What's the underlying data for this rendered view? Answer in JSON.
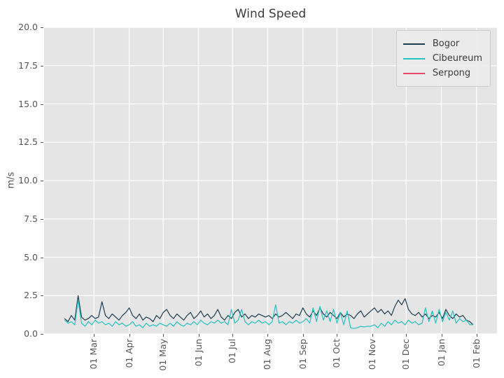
{
  "chart_data": {
    "type": "line",
    "title": "Wind Speed",
    "ylabel": "m/s",
    "xlabel": "",
    "ylim": [
      0,
      20
    ],
    "y_ticks": [
      0.0,
      2.5,
      5.0,
      7.5,
      10.0,
      12.5,
      15.0,
      17.5,
      20.0
    ],
    "y_tick_labels": [
      "0.0",
      "2.5",
      "5.0",
      "7.5",
      "10.0",
      "12.5",
      "15.0",
      "17.5",
      "20.0"
    ],
    "x_domain_days": [
      -18,
      381
    ],
    "x_ticks": [
      {
        "label": "01 Mar",
        "day": 26
      },
      {
        "label": "01 Apr",
        "day": 57
      },
      {
        "label": "01 May",
        "day": 87
      },
      {
        "label": "01 Jun",
        "day": 118
      },
      {
        "label": "01 Jul",
        "day": 148
      },
      {
        "label": "01 Aug",
        "day": 179
      },
      {
        "label": "01 Sep",
        "day": 210
      },
      {
        "label": "01 Oct",
        "day": 240
      },
      {
        "label": "01 Nov",
        "day": 271
      },
      {
        "label": "01 Dec",
        "day": 301
      },
      {
        "label": "01 Jan",
        "day": 332
      },
      {
        "label": "01 Feb",
        "day": 363
      }
    ],
    "grid": true,
    "legend_position": "upper right",
    "colors": {
      "axes_background": "#e5e5e5",
      "grid": "#ffffff",
      "ticks_text": "#555555",
      "title_text": "#3a3a3a"
    },
    "series": [
      {
        "name": "Bogor",
        "color": "#1d3d50",
        "x_start_day": 0,
        "x_step_days": 3,
        "values": [
          1.0,
          0.8,
          1.2,
          0.9,
          2.5,
          1.1,
          0.9,
          1.0,
          1.2,
          1.0,
          1.1,
          2.1,
          1.2,
          1.0,
          1.3,
          1.1,
          0.9,
          1.2,
          1.4,
          1.7,
          1.2,
          1.0,
          1.3,
          0.9,
          1.1,
          1.0,
          0.8,
          1.2,
          1.0,
          1.4,
          1.6,
          1.2,
          1.0,
          1.3,
          1.1,
          0.9,
          1.2,
          1.4,
          1.0,
          1.2,
          1.5,
          1.1,
          1.3,
          1.0,
          1.2,
          1.6,
          1.1,
          0.9,
          1.2,
          1.0,
          1.4,
          1.6,
          1.1,
          1.3,
          1.0,
          1.2,
          1.1,
          1.3,
          1.2,
          1.1,
          1.2,
          1.0,
          1.3,
          1.1,
          1.2,
          1.4,
          1.2,
          1.0,
          1.3,
          1.2,
          1.7,
          1.3,
          1.1,
          1.5,
          1.2,
          1.7,
          1.3,
          1.1,
          1.4,
          1.2,
          1.0,
          1.4,
          1.1,
          1.3,
          1.2,
          1.0,
          1.3,
          1.5,
          1.1,
          1.3,
          1.5,
          1.7,
          1.4,
          1.6,
          1.3,
          1.5,
          1.2,
          1.8,
          2.2,
          1.9,
          2.3,
          1.6,
          1.3,
          1.2,
          1.4,
          1.1,
          1.3,
          1.0,
          1.2,
          1.1,
          1.4,
          1.0,
          1.6,
          1.2,
          1.0,
          1.3,
          1.1,
          1.2,
          0.9,
          0.8,
          0.6
        ]
      },
      {
        "name": "Cibeureum",
        "color": "#25c3c3",
        "x_start_day": 0,
        "x_step_days": 3,
        "values": [
          0.9,
          0.7,
          0.8,
          0.6,
          2.2,
          0.7,
          0.5,
          0.8,
          0.6,
          0.9,
          0.7,
          0.8,
          0.6,
          0.7,
          0.5,
          0.8,
          0.6,
          0.7,
          0.5,
          0.6,
          0.8,
          0.5,
          0.6,
          0.4,
          0.7,
          0.5,
          0.6,
          0.5,
          0.7,
          0.6,
          0.5,
          0.7,
          0.5,
          0.8,
          0.6,
          0.5,
          0.7,
          0.6,
          0.8,
          0.6,
          0.9,
          0.7,
          0.6,
          0.8,
          0.7,
          0.9,
          0.7,
          0.8,
          0.6,
          1.6,
          0.7,
          0.9,
          1.6,
          0.8,
          0.6,
          0.8,
          0.7,
          0.9,
          0.7,
          0.8,
          0.6,
          0.8,
          1.9,
          0.7,
          0.8,
          0.6,
          0.8,
          0.7,
          0.9,
          0.7,
          0.8,
          1.0,
          0.7,
          1.7,
          0.8,
          1.8,
          0.9,
          1.5,
          0.8,
          1.6,
          0.7,
          1.4,
          0.6,
          1.5,
          0.4,
          0.35,
          0.4,
          0.5,
          0.45,
          0.5,
          0.5,
          0.6,
          0.4,
          0.7,
          0.5,
          0.8,
          0.6,
          0.9,
          0.7,
          0.8,
          0.6,
          0.9,
          0.7,
          0.8,
          0.6,
          0.7,
          1.7,
          0.8,
          1.5,
          0.7,
          1.6,
          0.8,
          1.4,
          0.9,
          1.5,
          0.7,
          1.0,
          0.8,
          0.9,
          0.6,
          0.6
        ]
      },
      {
        "name": "Serpong",
        "color": "#e8486b",
        "x_start_day": 0,
        "x_step_days": 3,
        "values": []
      }
    ]
  }
}
